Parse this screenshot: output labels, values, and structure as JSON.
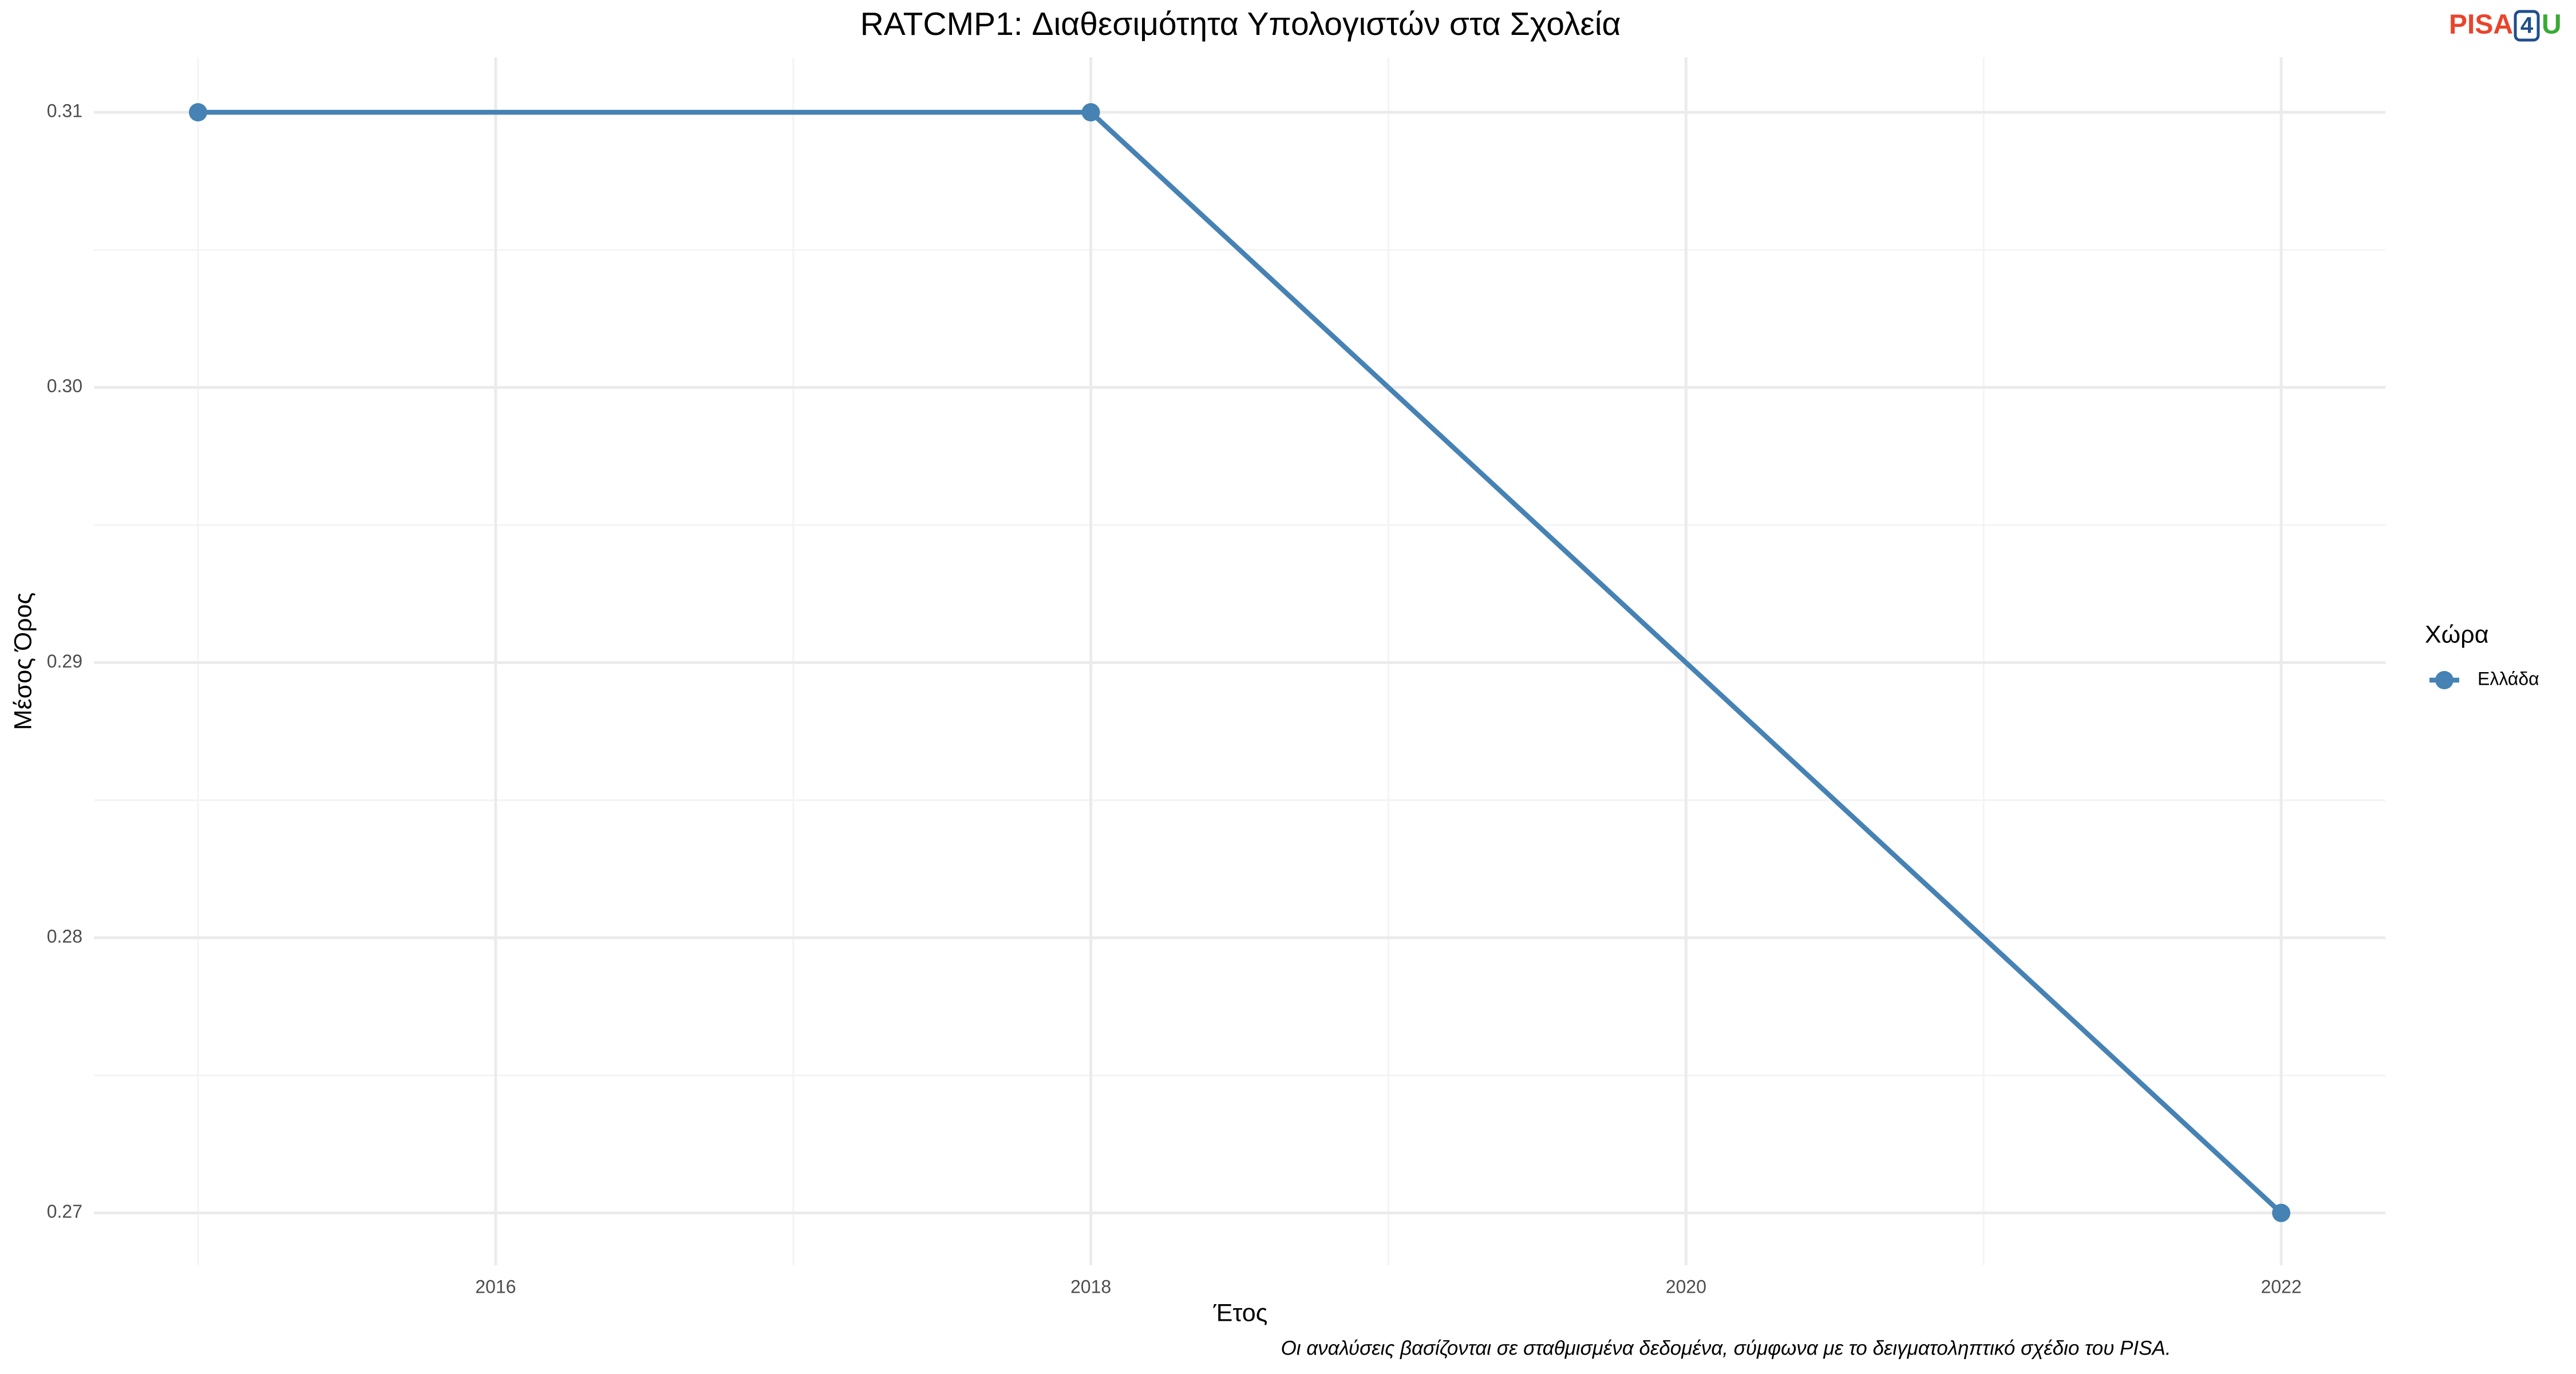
{
  "chart_data": {
    "type": "line",
    "title": "RATCMP1: Διαθεσιμότητα Υπολογιστών στα Σχολεία",
    "x_label": "Έτος",
    "y_label": "Μέσος Όρος",
    "caption": "Οι αναλύσεις βασίζονται σε σταθμισμένα δεδομένα, σύμφωνα με το δειγματοληπτικό σχέδιο του PISA.",
    "legend_title": "Χώρα",
    "logo": [
      "PISA",
      "4",
      "U"
    ],
    "x": [
      2015,
      2018,
      2022
    ],
    "series": [
      {
        "name": "Ελλάδα",
        "color": "#4682b4",
        "values": [
          0.31,
          0.31,
          0.27
        ]
      }
    ],
    "xlim": [
      2014.65,
      2022.35
    ],
    "xticks": [
      2016,
      2018,
      2020,
      2022
    ],
    "ylim": [
      0.2681,
      0.312
    ],
    "yticks": [
      0.27,
      0.28,
      0.29,
      {
        "value": 0.3,
        "label": "0.30"
      },
      0.31
    ],
    "grid": true,
    "legend": "right"
  }
}
